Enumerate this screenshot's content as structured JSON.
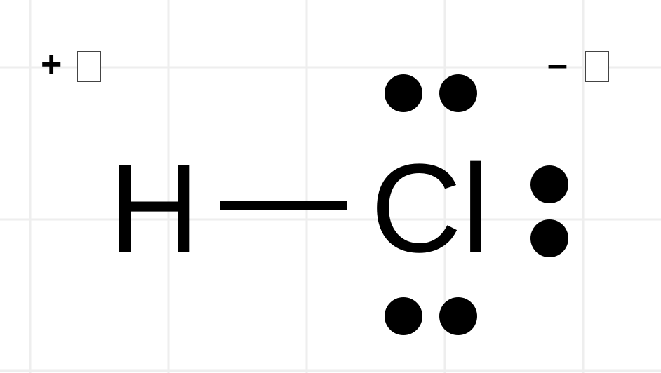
{
  "molecule": {
    "atoms": [
      {
        "symbol": "H"
      },
      {
        "symbol": "Cl"
      }
    ],
    "bond": {
      "type": "single"
    },
    "lone_pairs_on_cl": 3,
    "partial_charges": {
      "hydrogen": "+",
      "chlorine": "–"
    }
  },
  "colors": {
    "ink": "#000000",
    "grid": "#eeeeee",
    "background": "#ffffff"
  }
}
